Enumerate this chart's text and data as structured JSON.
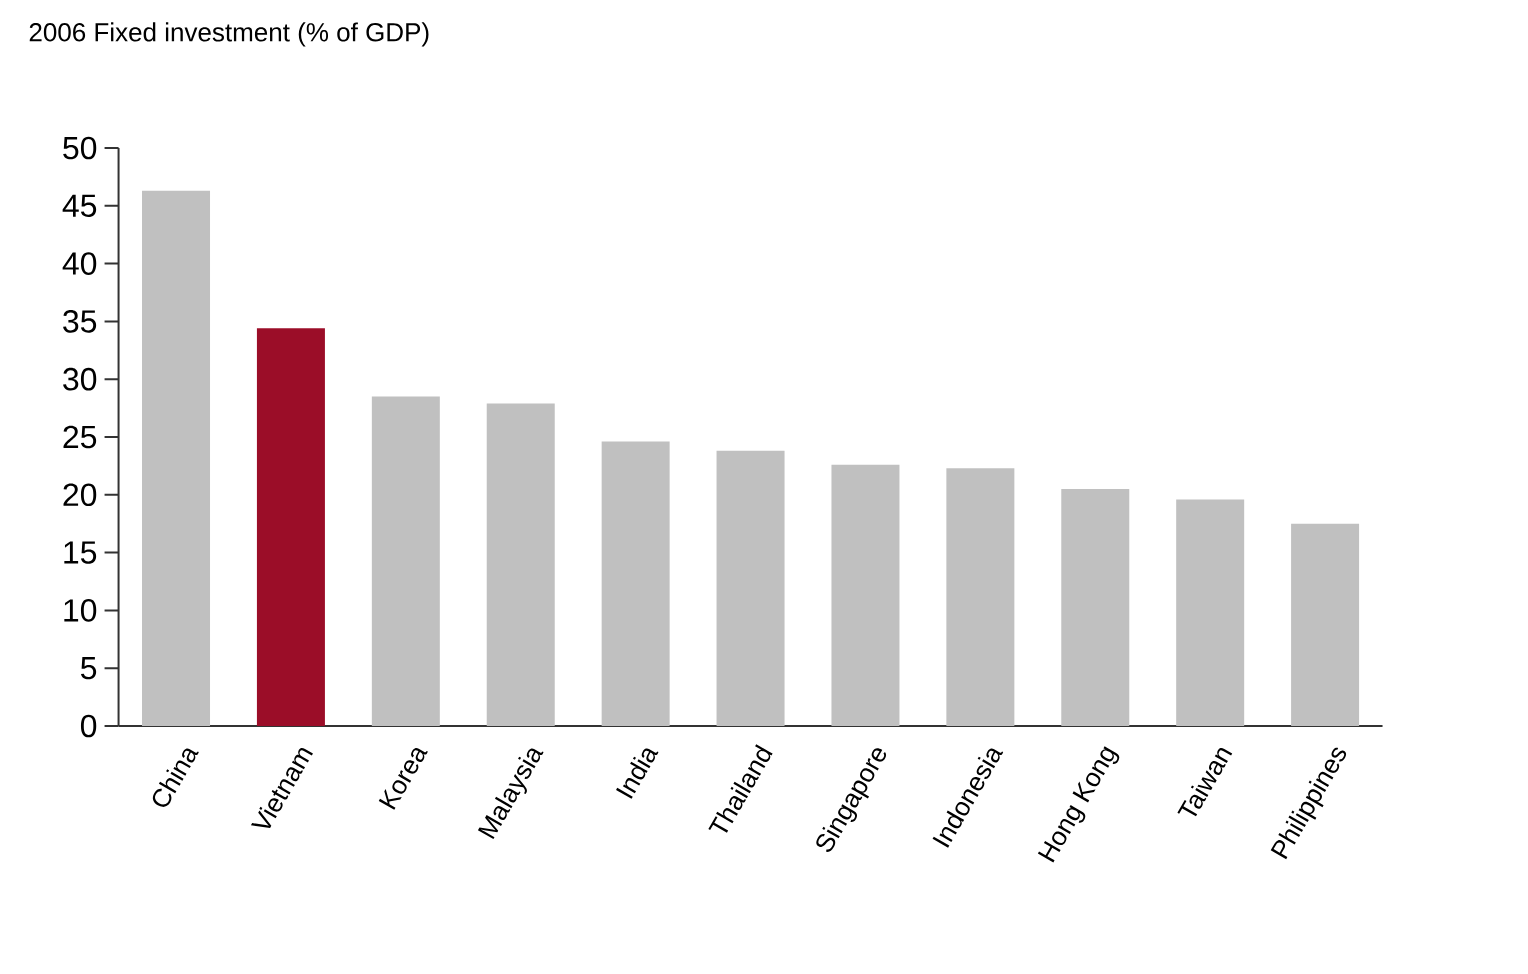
{
  "chart_data": {
    "type": "bar",
    "title": "2006 Fixed investment (% of GDP)",
    "categories": [
      "China",
      "Vietnam",
      "Korea",
      "Malaysia",
      "India",
      "Thailand",
      "Singapore",
      "Indonesia",
      "Hong Kong",
      "Taiwan",
      "Philippines"
    ],
    "values": [
      46.3,
      34.4,
      28.5,
      27.9,
      24.6,
      23.8,
      22.6,
      22.3,
      20.5,
      19.6,
      17.5
    ],
    "colors": [
      "#c0c0c0",
      "#9b0d28",
      "#c0c0c0",
      "#c0c0c0",
      "#c0c0c0",
      "#c0c0c0",
      "#c0c0c0",
      "#c0c0c0",
      "#c0c0c0",
      "#c0c0c0",
      "#c0c0c0"
    ],
    "ylim": [
      0,
      50
    ],
    "yticks": [
      0,
      5,
      10,
      15,
      20,
      25,
      30,
      35,
      40,
      45,
      50
    ]
  }
}
